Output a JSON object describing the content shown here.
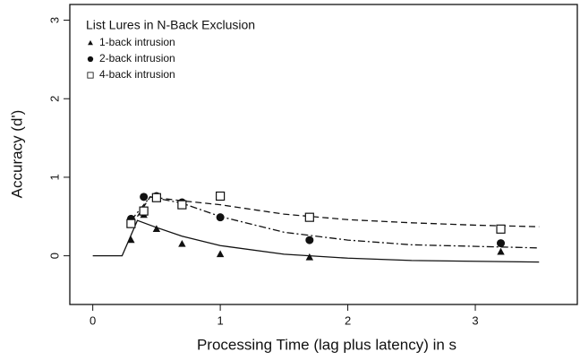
{
  "chart_data": {
    "type": "scatter",
    "legend_title": "List Lures in N-Back Exclusion",
    "xlabel": "Processing Time (lag plus latency) in s",
    "ylabel": "Accuracy (d')",
    "x": [
      0.3,
      0.4,
      0.5,
      0.7,
      1.0,
      1.7,
      3.2
    ],
    "series": [
      {
        "name": "1-back intrusion",
        "color": "#111111",
        "marker": "triangle",
        "line": "solid",
        "values": [
          0.2,
          0.52,
          0.34,
          0.15,
          0.02,
          -0.02,
          0.05
        ],
        "fit_x": [
          0,
          0.23,
          0.35,
          0.5,
          0.7,
          1.0,
          1.5,
          2.0,
          2.5,
          3.5
        ],
        "fit_values": [
          0,
          0,
          0.45,
          0.36,
          0.25,
          0.13,
          0.02,
          -0.03,
          -0.06,
          -0.08
        ]
      },
      {
        "name": "2-back intrusion",
        "color": "#111111",
        "marker": "circle",
        "line": "dashdot",
        "values": [
          0.47,
          0.75,
          0.76,
          0.68,
          0.49,
          0.2,
          0.16
        ],
        "fit_x": [
          0.3,
          0.45,
          0.7,
          1.0,
          1.5,
          2.0,
          2.5,
          3.0,
          3.5
        ],
        "fit_values": [
          0.45,
          0.75,
          0.67,
          0.5,
          0.3,
          0.2,
          0.14,
          0.12,
          0.1
        ]
      },
      {
        "name": "4-back intrusion",
        "color": "#111111",
        "marker": "square",
        "line": "dashed",
        "values": [
          0.41,
          0.57,
          0.74,
          0.65,
          0.76,
          0.49,
          0.34
        ],
        "fit_x": [
          0.35,
          0.45,
          0.7,
          1.0,
          1.5,
          2.0,
          2.5,
          3.0,
          3.5
        ],
        "fit_values": [
          0.5,
          0.75,
          0.7,
          0.65,
          0.53,
          0.46,
          0.42,
          0.39,
          0.37
        ]
      }
    ],
    "xlim": [
      -0.18,
      3.8
    ],
    "ylim": [
      -0.62,
      3.2
    ],
    "xticks": [
      0,
      1,
      2,
      3
    ],
    "yticks": [
      0,
      1,
      2,
      3
    ]
  }
}
